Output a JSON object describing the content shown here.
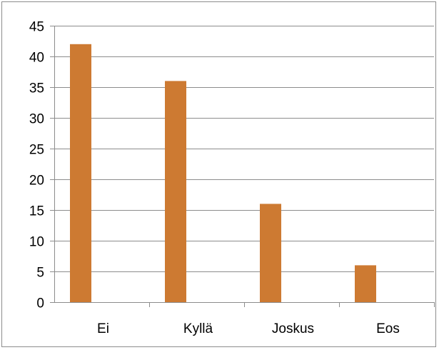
{
  "chart_data": {
    "type": "bar",
    "categories": [
      "Ei",
      "Kyllä",
      "Joskus",
      "Eos"
    ],
    "values": [
      42,
      36,
      16,
      6
    ],
    "title": "",
    "xlabel": "",
    "ylabel": "",
    "ylim": [
      0,
      45
    ],
    "yticks": [
      0,
      5,
      10,
      15,
      20,
      25,
      30,
      35,
      40,
      45
    ],
    "grid": true,
    "legend": "none",
    "bar_color": "#cd7a32",
    "grid_color": "#8c8c8c"
  }
}
